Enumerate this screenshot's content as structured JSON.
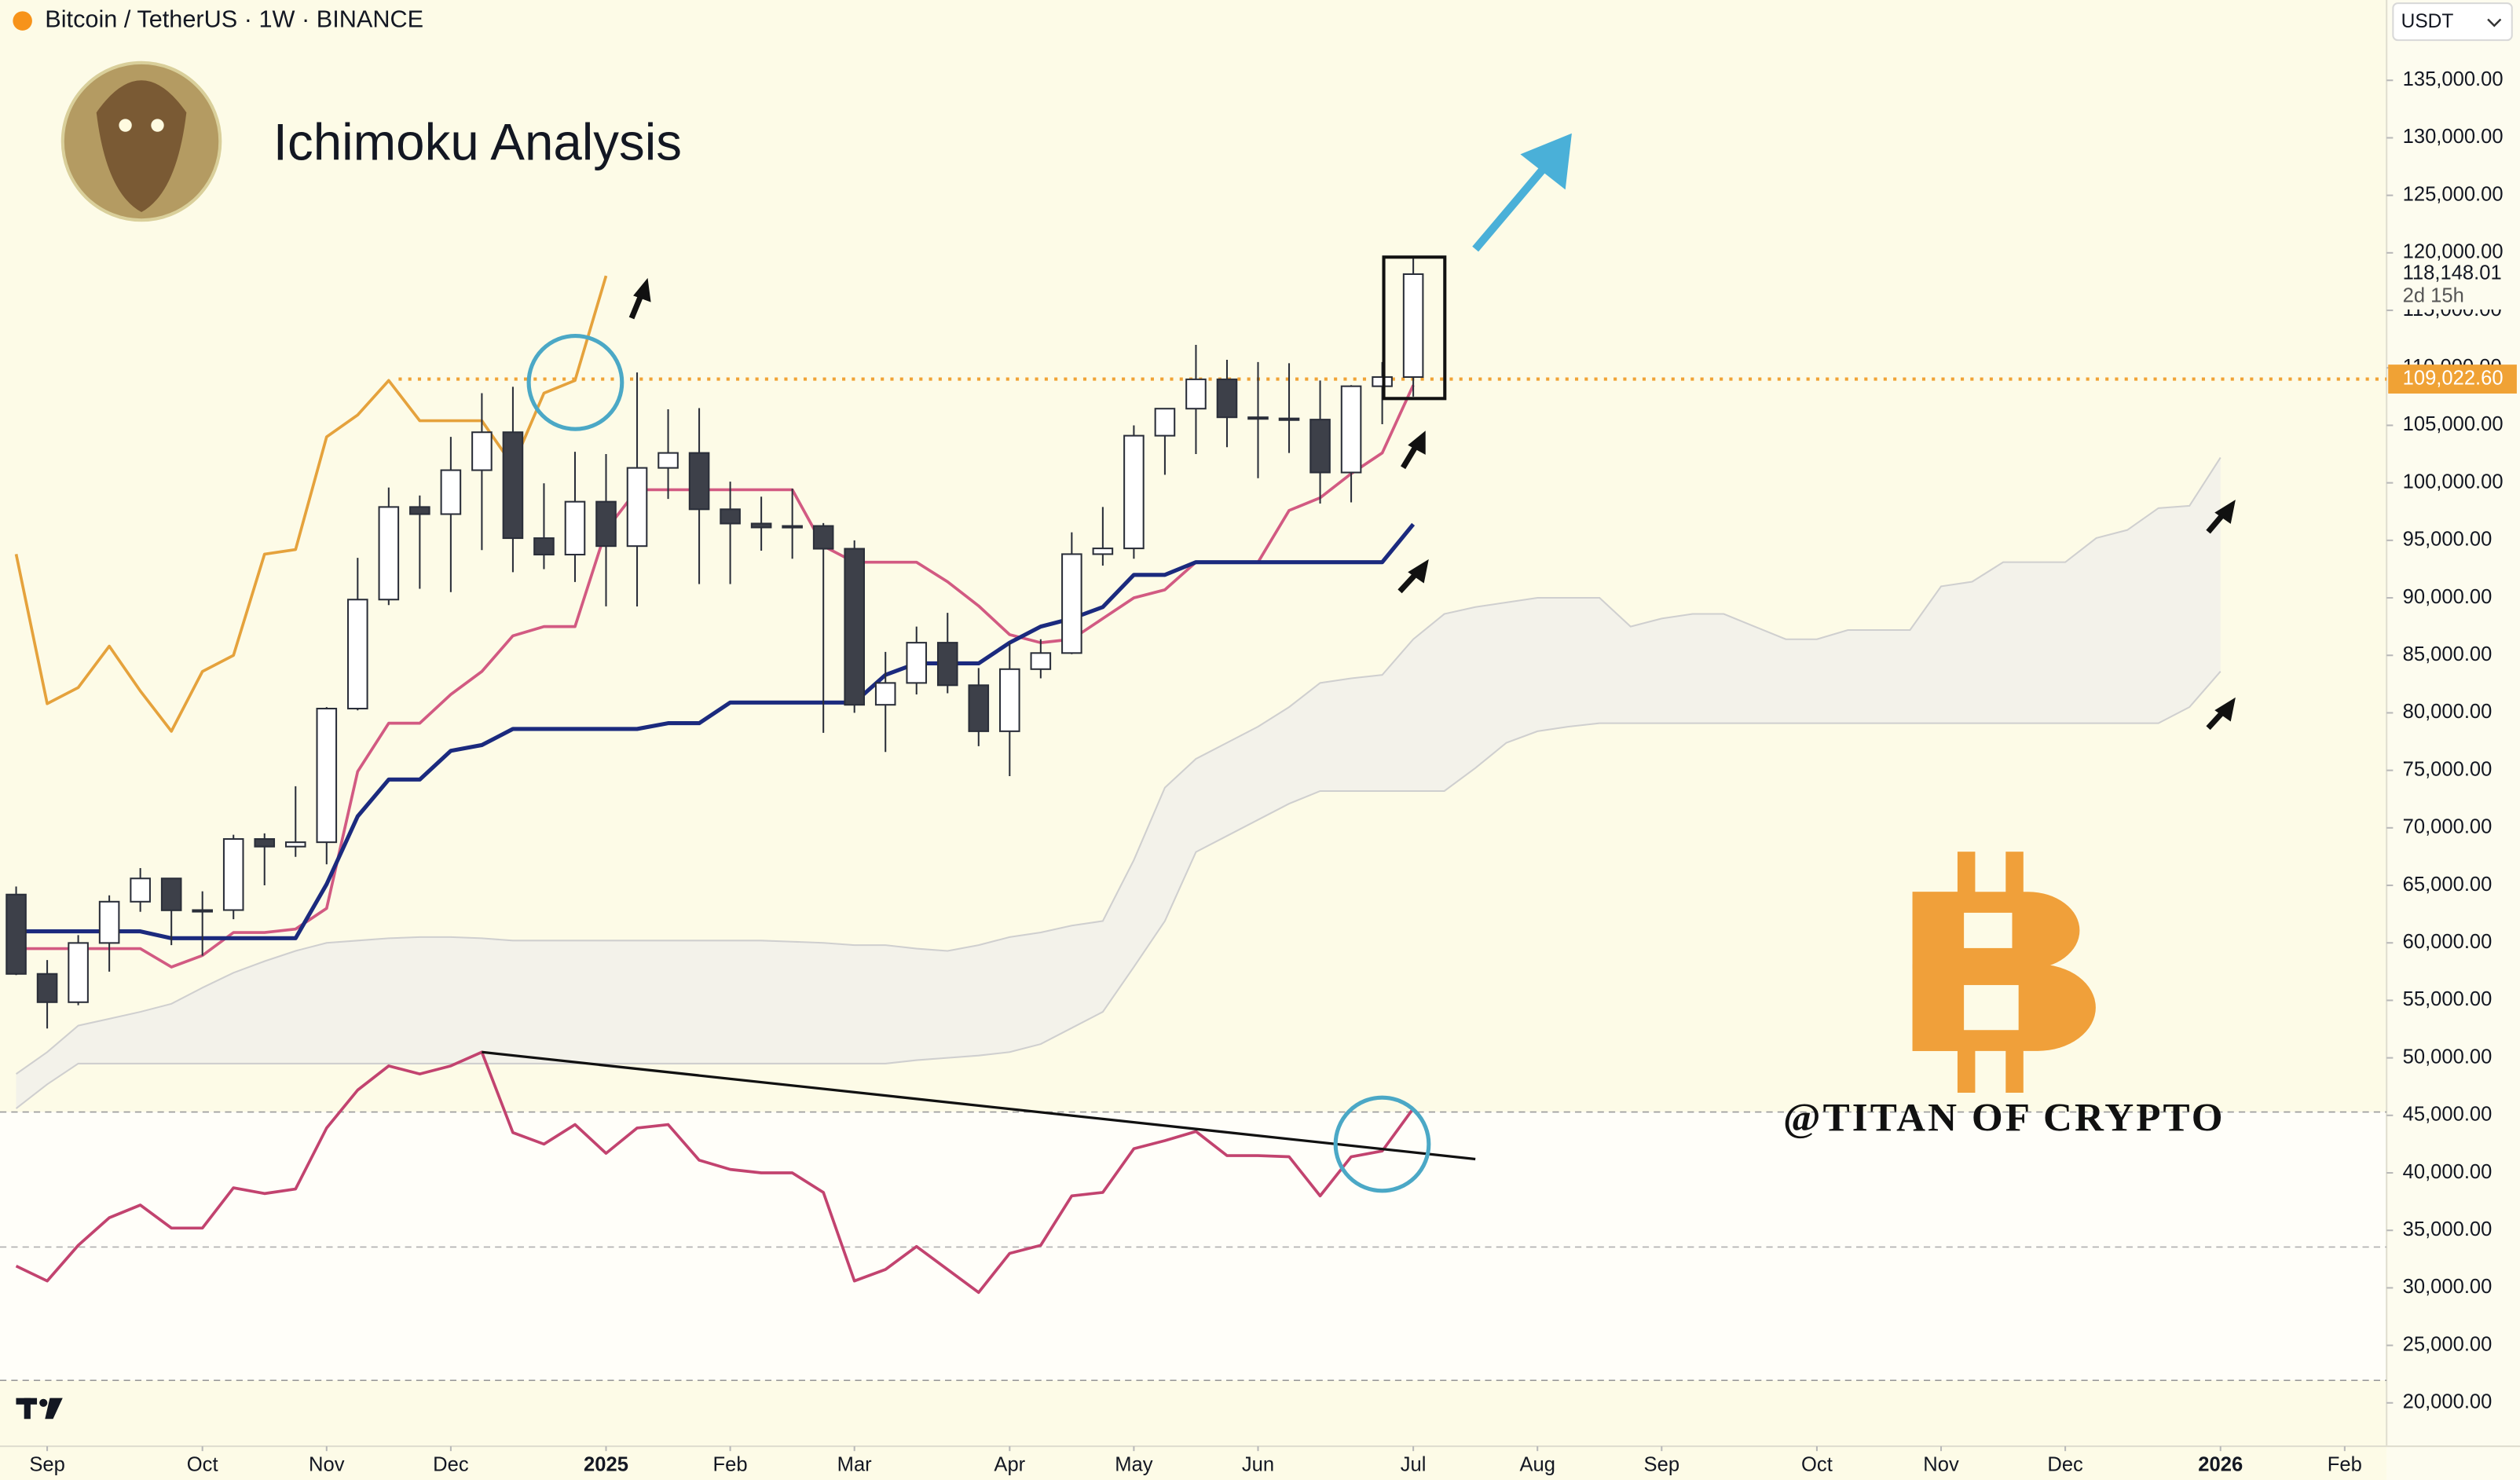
{
  "chart_data": {
    "type": "candlestick",
    "title": "Bitcoin / TetherUS · 1W · BINANCE",
    "currency": "USDT",
    "subtitle": "Ichimoku Analysis",
    "watermark": "@TITAN OF CRYPTO",
    "bull_color": "#ffffff",
    "bear_color": "#3d4049",
    "open": [
      64200,
      57300,
      54840,
      59990,
      63580,
      65600,
      62830,
      62850,
      69030,
      68370,
      68750,
      80370,
      89850,
      97900,
      97280,
      101100,
      104400,
      95190,
      93760,
      98360,
      94500,
      101300,
      102600,
      97700,
      96460,
      96120,
      96250,
      94270,
      80700,
      82600,
      86100,
      82400,
      78400,
      83800,
      85200,
      93800,
      94300,
      104100,
      106450,
      109000,
      105700,
      105600,
      105500,
      100900,
      108400,
      109200
    ],
    "high": [
      64900,
      58500,
      60670,
      64130,
      66500,
      65600,
      64480,
      69400,
      69520,
      73620,
      80500,
      93480,
      99590,
      98900,
      104000,
      107800,
      108350,
      99960,
      102700,
      102500,
      109600,
      106400,
      106500,
      100100,
      98800,
      99500,
      96500,
      95000,
      85300,
      87500,
      88700,
      83900,
      86100,
      86400,
      95700,
      97900,
      105000,
      106500,
      112000,
      110700,
      110500,
      110400,
      108900,
      108500,
      110500,
      119500
    ],
    "low": [
      57200,
      52550,
      54580,
      57500,
      62700,
      59800,
      58890,
      62060,
      65000,
      67480,
      66830,
      80220,
      89370,
      90790,
      90500,
      94150,
      92230,
      92500,
      91380,
      89260,
      89250,
      98600,
      91200,
      91200,
      94100,
      93400,
      78260,
      80000,
      76600,
      81600,
      81700,
      77100,
      74500,
      83000,
      85100,
      92800,
      93400,
      100700,
      102500,
      103100,
      100400,
      102600,
      98200,
      98300,
      105100,
      107500
    ],
    "close": [
      57300,
      54840,
      59990,
      63580,
      65600,
      62830,
      62850,
      69030,
      68370,
      68750,
      80370,
      89850,
      97900,
      97280,
      101100,
      104400,
      95190,
      93760,
      98360,
      94500,
      101300,
      102600,
      97700,
      96460,
      96120,
      96250,
      94270,
      80700,
      82600,
      86100,
      82400,
      78400,
      83800,
      85200,
      93800,
      94300,
      104100,
      106450,
      109000,
      105700,
      105600,
      105500,
      100900,
      108400,
      109200,
      118148.01
    ],
    "series": [
      {
        "color": "#d25a82",
        "values": [
          59500,
          59500,
          59500,
          59500,
          59500,
          57900,
          58900,
          60900,
          60900,
          61200,
          63000,
          74900,
          79100,
          79100,
          81600,
          83600,
          86700,
          87500,
          87500,
          95900,
          99400,
          99400,
          99400,
          99400,
          99400,
          99400,
          94500,
          93100,
          93100,
          93100,
          91400,
          89300,
          86800,
          86100,
          86400,
          88200,
          90000,
          90700,
          93100,
          93100,
          93100,
          97600,
          98700,
          100800,
          102600,
          108500
        ]
      },
      {
        "color": "#1b2a7e",
        "values": [
          61000,
          61000,
          61000,
          61000,
          61000,
          60400,
          60400,
          60400,
          60400,
          60400,
          65100,
          71000,
          74200,
          74200,
          76700,
          77200,
          78600,
          78600,
          78600,
          78600,
          78600,
          79100,
          79100,
          80900,
          80900,
          80900,
          80900,
          80900,
          83300,
          84300,
          84300,
          84300,
          86100,
          87500,
          88200,
          89200,
          92000,
          92000,
          93100,
          93100,
          93100,
          93100,
          93100,
          93100,
          93100,
          96400
        ]
      },
      {
        "color": "#e5a23c",
        "values": [
          93800,
          80800,
          82200,
          85800,
          81900,
          78400,
          83600,
          85000,
          93800,
          94200,
          104000,
          105900,
          108900,
          105400,
          105400,
          105400,
          101500,
          107800,
          108900,
          118000,
          null,
          null,
          null,
          null,
          null,
          null,
          null,
          null,
          null,
          null,
          null,
          null,
          null,
          null,
          null,
          null,
          null,
          null,
          null,
          null,
          null,
          null,
          null,
          null,
          null,
          null
        ]
      },
      {
        "color": "#c2436f",
        "values": [
          31900,
          30600,
          33700,
          36100,
          37200,
          35200,
          35200,
          38700,
          38200,
          38600,
          43900,
          47200,
          49300,
          48600,
          49300,
          50500,
          43500,
          42500,
          44200,
          41700,
          43900,
          44200,
          41100,
          40300,
          40000,
          40000,
          38300,
          30600,
          31600,
          33600,
          31600,
          29600,
          33000,
          33700,
          38000,
          38300,
          42100,
          42800,
          43600,
          41500,
          41500,
          41400,
          38000,
          41400,
          41900,
          45600
        ]
      }
    ],
    "cloud": {
      "color": "#f3f2ea",
      "line_color": "#cfcfcf",
      "upper": [
        48600,
        50500,
        52800,
        53400,
        54000,
        54700,
        56100,
        57400,
        58400,
        59300,
        60000,
        60200,
        60400,
        60500,
        60500,
        60400,
        60200,
        60200,
        60200,
        60200,
        60200,
        60200,
        60200,
        60200,
        60200,
        60100,
        60000,
        59800,
        59800,
        59500,
        59300,
        59800,
        60500,
        60900,
        61500,
        61900,
        67200,
        73500,
        76000,
        77400,
        78800,
        80500,
        82600,
        83000,
        83300,
        86400,
        88600,
        89200,
        89600,
        90000,
        90000,
        90000,
        87500,
        88200,
        88600,
        88600,
        87500,
        86400,
        86400,
        87200,
        87200,
        87200,
        91000,
        91400,
        93100,
        93100,
        93100,
        95200,
        95900,
        97800,
        98000,
        102200
      ],
      "lower": [
        45600,
        47700,
        49500,
        49500,
        49500,
        49500,
        49500,
        49500,
        49500,
        49500,
        49500,
        49500,
        49500,
        49500,
        49500,
        49500,
        49500,
        49500,
        49500,
        49500,
        49500,
        49500,
        49500,
        49500,
        49500,
        49500,
        49500,
        49500,
        49500,
        49800,
        50000,
        50200,
        50500,
        51200,
        52600,
        54000,
        57900,
        61900,
        67900,
        69300,
        70700,
        72100,
        73200,
        73200,
        73200,
        73200,
        73200,
        75200,
        77400,
        78400,
        78800,
        79100,
        79100,
        79100,
        79100,
        79100,
        79100,
        79100,
        79100,
        79100,
        79100,
        79100,
        79100,
        79100,
        79100,
        79100,
        79100,
        79100,
        79100,
        79100,
        80500,
        83600
      ]
    },
    "trendline": {
      "color": "#111111",
      "x": [
        15,
        47
      ],
      "y": [
        50500,
        41200
      ]
    },
    "price_lines": [
      {
        "value": 109022.6,
        "label": "109,022.60",
        "color": "#f0a235"
      }
    ],
    "last_price": {
      "value": 118148.01,
      "label": "118,148.01",
      "countdown": "2d 15h"
    },
    "xlim": [
      -0.52,
      76.35
    ],
    "xticks": [
      {
        "value": 1,
        "label": "Sep"
      },
      {
        "value": 6,
        "label": "Oct"
      },
      {
        "value": 10,
        "label": "Nov"
      },
      {
        "value": 14,
        "label": "Dec"
      },
      {
        "value": 19,
        "label": "2025"
      },
      {
        "value": 23,
        "label": "Feb"
      },
      {
        "value": 27,
        "label": "Mar"
      },
      {
        "value": 32,
        "label": "Apr"
      },
      {
        "value": 36,
        "label": "May"
      },
      {
        "value": 40,
        "label": "Jun"
      },
      {
        "value": 45,
        "label": "Jul"
      },
      {
        "value": 49,
        "label": "Aug"
      },
      {
        "value": 53,
        "label": "Sep"
      },
      {
        "value": 58,
        "label": "Oct"
      },
      {
        "value": 62,
        "label": "Nov"
      },
      {
        "value": 66,
        "label": "Dec"
      },
      {
        "value": 71,
        "label": "2026"
      },
      {
        "value": 75,
        "label": "Feb"
      }
    ],
    "ylim": [
      16227,
      141985
    ],
    "yticks": [
      {
        "value": 135000,
        "label": "135,000.00"
      },
      {
        "value": 130000,
        "label": "130,000.00"
      },
      {
        "value": 125000,
        "label": "125,000.00"
      },
      {
        "value": 120000,
        "label": "120,000.00"
      },
      {
        "value": 115000,
        "label": "115,000.00"
      },
      {
        "value": 110000,
        "label": "110,000.00"
      },
      {
        "value": 105000,
        "label": "105,000.00"
      },
      {
        "value": 100000,
        "label": "100,000.00"
      },
      {
        "value": 95000,
        "label": "95,000.00"
      },
      {
        "value": 90000,
        "label": "90,000.00"
      },
      {
        "value": 85000,
        "label": "85,000.00"
      },
      {
        "value": 80000,
        "label": "80,000.00"
      },
      {
        "value": 75000,
        "label": "75,000.00"
      },
      {
        "value": 70000,
        "label": "70,000.00"
      },
      {
        "value": 65000,
        "label": "65,000.00"
      },
      {
        "value": 60000,
        "label": "60,000.00"
      },
      {
        "value": 55000,
        "label": "55,000.00"
      },
      {
        "value": 50000,
        "label": "50,000.00"
      },
      {
        "value": 45000,
        "label": "45,000.00"
      },
      {
        "value": 40000,
        "label": "40,000.00"
      },
      {
        "value": 35000,
        "label": "35,000.00"
      },
      {
        "value": 30000,
        "label": "30,000.00"
      },
      {
        "value": 25000,
        "label": "25,000.00"
      },
      {
        "value": 20000,
        "label": "20,000.00"
      }
    ]
  }
}
